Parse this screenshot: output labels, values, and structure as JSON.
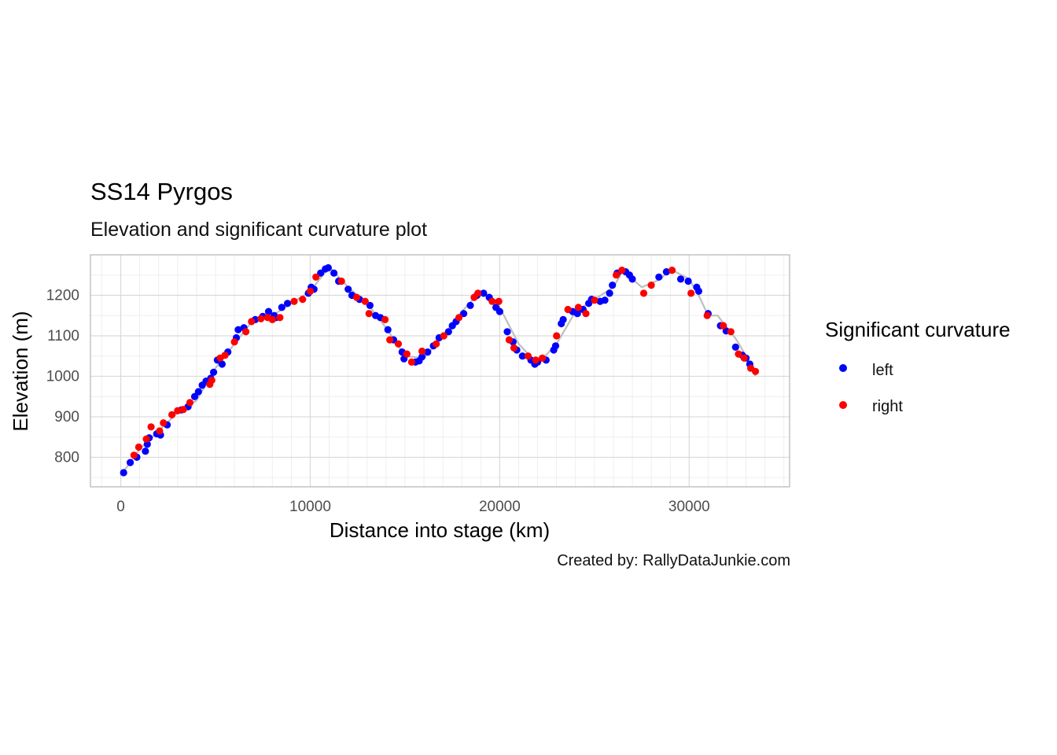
{
  "chart_data": {
    "type": "scatter",
    "title": "SS14 Pyrgos",
    "subtitle": "Elevation and significant curvature plot",
    "caption": "Created by: RallyDataJunkie.com",
    "xlabel": "Distance into stage (km)",
    "ylabel": "Elevation (m)",
    "xlim": [
      -1600,
      35300
    ],
    "ylim": [
      727,
      1300
    ],
    "x_ticks": [
      0,
      10000,
      20000,
      30000
    ],
    "x_tick_labels": [
      "0",
      "10000",
      "20000",
      "30000"
    ],
    "y_ticks": [
      800,
      900,
      1000,
      1100,
      1200
    ],
    "y_tick_labels": [
      "800",
      "900",
      "1000",
      "1100",
      "1200"
    ],
    "grid": true,
    "legend": {
      "title": "Significant curvature",
      "position": "right",
      "entries": [
        {
          "label": "left",
          "color": "#0000ff"
        },
        {
          "label": "right",
          "color": "#ff0000"
        }
      ]
    },
    "profile_color": "#bebebe",
    "profile": [
      [
        0,
        755
      ],
      [
        1000,
        820
      ],
      [
        2000,
        865
      ],
      [
        3000,
        910
      ],
      [
        4000,
        940
      ],
      [
        5000,
        1020
      ],
      [
        6000,
        1080
      ],
      [
        7000,
        1140
      ],
      [
        8000,
        1150
      ],
      [
        9000,
        1180
      ],
      [
        10000,
        1210
      ],
      [
        11000,
        1270
      ],
      [
        12000,
        1220
      ],
      [
        13000,
        1180
      ],
      [
        14000,
        1120
      ],
      [
        15000,
        1050
      ],
      [
        16000,
        1045
      ],
      [
        17000,
        1100
      ],
      [
        18000,
        1160
      ],
      [
        19000,
        1210
      ],
      [
        20000,
        1170
      ],
      [
        21000,
        1080
      ],
      [
        22000,
        1030
      ],
      [
        23000,
        1080
      ],
      [
        24000,
        1160
      ],
      [
        25000,
        1190
      ],
      [
        26000,
        1220
      ],
      [
        26500,
        1260
      ],
      [
        27500,
        1220
      ],
      [
        28500,
        1240
      ],
      [
        29000,
        1265
      ],
      [
        30000,
        1240
      ],
      [
        30500,
        1200
      ],
      [
        31000,
        1150
      ],
      [
        31500,
        1150
      ],
      [
        32000,
        1120
      ],
      [
        32500,
        1090
      ],
      [
        33000,
        1050
      ],
      [
        33500,
        1000
      ]
    ],
    "series": [
      {
        "name": "left",
        "color": "#0000ff",
        "points": [
          [
            150,
            762
          ],
          [
            500,
            787
          ],
          [
            850,
            800
          ],
          [
            1300,
            815
          ],
          [
            1400,
            832
          ],
          [
            1500,
            848
          ],
          [
            1900,
            858
          ],
          [
            2100,
            855
          ],
          [
            2450,
            880
          ],
          [
            3200,
            917
          ],
          [
            3550,
            925
          ],
          [
            3900,
            950
          ],
          [
            4100,
            962
          ],
          [
            4300,
            978
          ],
          [
            4500,
            988
          ],
          [
            4750,
            995
          ],
          [
            4900,
            1010
          ],
          [
            5100,
            1040
          ],
          [
            5350,
            1030
          ],
          [
            5650,
            1060
          ],
          [
            6100,
            1095
          ],
          [
            6200,
            1115
          ],
          [
            6500,
            1120
          ],
          [
            7100,
            1140
          ],
          [
            7500,
            1148
          ],
          [
            7800,
            1160
          ],
          [
            8100,
            1150
          ],
          [
            8200,
            1145
          ],
          [
            8500,
            1170
          ],
          [
            8800,
            1180
          ],
          [
            9900,
            1205
          ],
          [
            10050,
            1220
          ],
          [
            10200,
            1215
          ],
          [
            10550,
            1255
          ],
          [
            10800,
            1265
          ],
          [
            10950,
            1268
          ],
          [
            11250,
            1255
          ],
          [
            11500,
            1235
          ],
          [
            12000,
            1215
          ],
          [
            12200,
            1200
          ],
          [
            12600,
            1190
          ],
          [
            13150,
            1175
          ],
          [
            13450,
            1150
          ],
          [
            13700,
            1145
          ],
          [
            14100,
            1115
          ],
          [
            14400,
            1090
          ],
          [
            14850,
            1060
          ],
          [
            14950,
            1043
          ],
          [
            15550,
            1035
          ],
          [
            15750,
            1038
          ],
          [
            15900,
            1048
          ],
          [
            16200,
            1060
          ],
          [
            16500,
            1075
          ],
          [
            16800,
            1095
          ],
          [
            17300,
            1110
          ],
          [
            17500,
            1125
          ],
          [
            17700,
            1135
          ],
          [
            18100,
            1155
          ],
          [
            18450,
            1175
          ],
          [
            18800,
            1200
          ],
          [
            19150,
            1205
          ],
          [
            19450,
            1195
          ],
          [
            19800,
            1170
          ],
          [
            20000,
            1160
          ],
          [
            20400,
            1110
          ],
          [
            20700,
            1085
          ],
          [
            20900,
            1065
          ],
          [
            21200,
            1050
          ],
          [
            21650,
            1040
          ],
          [
            21850,
            1030
          ],
          [
            22000,
            1035
          ],
          [
            22450,
            1040
          ],
          [
            22850,
            1065
          ],
          [
            22950,
            1075
          ],
          [
            23250,
            1130
          ],
          [
            23350,
            1140
          ],
          [
            23850,
            1160
          ],
          [
            24100,
            1155
          ],
          [
            24400,
            1165
          ],
          [
            24700,
            1180
          ],
          [
            24850,
            1190
          ],
          [
            25300,
            1185
          ],
          [
            25550,
            1188
          ],
          [
            25800,
            1205
          ],
          [
            25950,
            1225
          ],
          [
            26200,
            1255
          ],
          [
            26650,
            1258
          ],
          [
            26850,
            1250
          ],
          [
            27000,
            1240
          ],
          [
            28400,
            1245
          ],
          [
            28800,
            1258
          ],
          [
            29550,
            1240
          ],
          [
            29950,
            1235
          ],
          [
            30400,
            1220
          ],
          [
            30500,
            1210
          ],
          [
            31000,
            1155
          ],
          [
            31650,
            1125
          ],
          [
            31950,
            1112
          ],
          [
            32450,
            1072
          ],
          [
            32800,
            1052
          ],
          [
            33000,
            1045
          ],
          [
            33200,
            1030
          ]
        ]
      },
      {
        "name": "right",
        "color": "#ff0000",
        "points": [
          [
            700,
            805
          ],
          [
            950,
            825
          ],
          [
            1350,
            845
          ],
          [
            1600,
            875
          ],
          [
            2050,
            865
          ],
          [
            2250,
            885
          ],
          [
            2700,
            905
          ],
          [
            3000,
            915
          ],
          [
            3300,
            918
          ],
          [
            3650,
            935
          ],
          [
            4700,
            980
          ],
          [
            4800,
            990
          ],
          [
            5250,
            1045
          ],
          [
            5500,
            1052
          ],
          [
            6000,
            1085
          ],
          [
            6600,
            1110
          ],
          [
            6900,
            1135
          ],
          [
            7400,
            1142
          ],
          [
            7750,
            1145
          ],
          [
            8000,
            1140
          ],
          [
            8400,
            1145
          ],
          [
            9150,
            1185
          ],
          [
            9600,
            1190
          ],
          [
            10000,
            1210
          ],
          [
            10300,
            1245
          ],
          [
            11650,
            1235
          ],
          [
            12450,
            1195
          ],
          [
            12900,
            1185
          ],
          [
            13100,
            1155
          ],
          [
            13950,
            1140
          ],
          [
            14200,
            1090
          ],
          [
            14650,
            1080
          ],
          [
            15100,
            1055
          ],
          [
            15350,
            1035
          ],
          [
            15900,
            1062
          ],
          [
            16650,
            1080
          ],
          [
            17050,
            1100
          ],
          [
            17850,
            1145
          ],
          [
            18650,
            1195
          ],
          [
            18850,
            1205
          ],
          [
            19600,
            1185
          ],
          [
            19950,
            1185
          ],
          [
            20500,
            1090
          ],
          [
            20750,
            1070
          ],
          [
            21500,
            1050
          ],
          [
            21900,
            1040
          ],
          [
            22250,
            1045
          ],
          [
            23000,
            1100
          ],
          [
            23600,
            1165
          ],
          [
            24150,
            1170
          ],
          [
            24550,
            1155
          ],
          [
            25000,
            1188
          ],
          [
            26150,
            1250
          ],
          [
            26450,
            1262
          ],
          [
            27600,
            1205
          ],
          [
            28000,
            1225
          ],
          [
            29100,
            1262
          ],
          [
            30100,
            1205
          ],
          [
            30950,
            1150
          ],
          [
            31800,
            1125
          ],
          [
            32200,
            1110
          ],
          [
            32600,
            1055
          ],
          [
            32900,
            1045
          ],
          [
            33250,
            1020
          ],
          [
            33500,
            1012
          ]
        ]
      }
    ]
  }
}
